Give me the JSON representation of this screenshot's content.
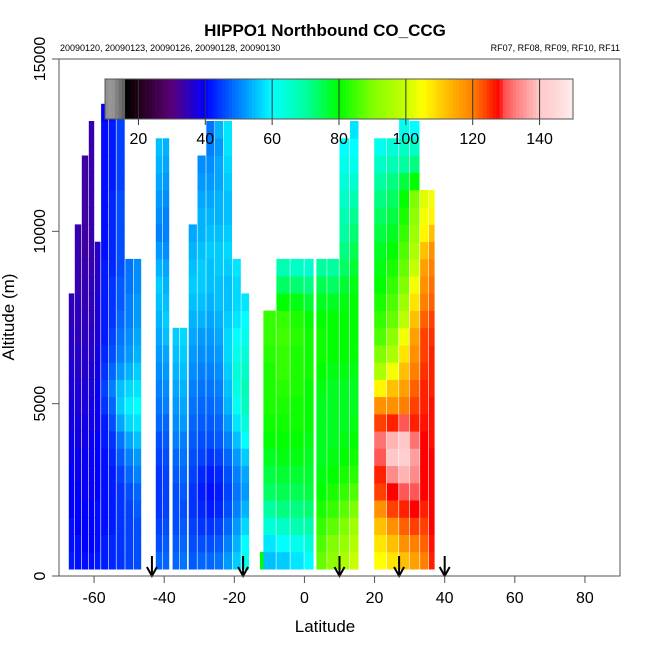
{
  "chart_data": {
    "type": "heatmap",
    "title": "HIPPO1 Northbound CO_CCG",
    "subtitle_left": "20090120, 20090123, 20090126, 20090128, 20090130",
    "subtitle_right": "RF07, RF08, RF09, RF10, RF11",
    "xlabel": "Latitude",
    "ylabel": "Altitude (m)",
    "xlim": [
      -70,
      90
    ],
    "ylim": [
      0,
      15000
    ],
    "xticks": [
      -60,
      -40,
      -20,
      0,
      20,
      40,
      60,
      80
    ],
    "yticks": [
      0,
      5000,
      10000,
      15000
    ],
    "grid": false,
    "colorbar": {
      "range": [
        10,
        150
      ],
      "ticks": [
        20,
        40,
        60,
        80,
        100,
        120,
        140
      ],
      "placement": "top",
      "stops": [
        [
          10,
          "#8c8c8c"
        ],
        [
          12,
          "#9a9a9a"
        ],
        [
          14,
          "#7a7a7a"
        ],
        [
          15.9,
          "#5a5a5a"
        ],
        [
          16,
          "#000000"
        ],
        [
          20,
          "#200014"
        ],
        [
          30,
          "#5a0078"
        ],
        [
          40,
          "#0000ff"
        ],
        [
          50,
          "#0080ff"
        ],
        [
          60,
          "#00ffff"
        ],
        [
          70,
          "#00ffa0"
        ],
        [
          80,
          "#00ff00"
        ],
        [
          90,
          "#80ff00"
        ],
        [
          100,
          "#c8ff00"
        ],
        [
          105,
          "#ffff00"
        ],
        [
          112,
          "#ffc000"
        ],
        [
          120,
          "#ff8000"
        ],
        [
          128,
          "#ff0000"
        ],
        [
          129,
          "#ff4848"
        ],
        [
          133,
          "#ff8080"
        ],
        [
          137,
          "#ffa8a8"
        ],
        [
          140,
          "#ffc8c8"
        ],
        [
          145,
          "#ffd8d8"
        ],
        [
          150,
          "#ffecec"
        ]
      ]
    },
    "flight_markers_lat": [
      -43.5,
      -17.5,
      10,
      27,
      40
    ],
    "bin_altitude_m": 500,
    "columns": [
      {
        "lat": [
          -67.2,
          -65.5
        ],
        "values": [
          42,
          41,
          41,
          40,
          40,
          40,
          39,
          39,
          38,
          38,
          37,
          37,
          36,
          36,
          35,
          35
        ]
      },
      {
        "lat": [
          -65.5,
          -63.5
        ],
        "values": [
          41,
          41,
          40,
          40,
          40,
          39,
          39,
          38,
          38,
          37,
          37,
          36,
          36,
          35,
          35,
          35,
          34,
          34,
          34,
          34
        ]
      },
      {
        "lat": [
          -63.5,
          -61.5
        ],
        "values": [
          41,
          40,
          40,
          40,
          39,
          39,
          39,
          38,
          38,
          37,
          37,
          36,
          36,
          35,
          35,
          34,
          34,
          34,
          33,
          33,
          33,
          33,
          33,
          33
        ]
      },
      {
        "lat": [
          -61.5,
          -59.8
        ],
        "values": [
          41,
          40,
          40,
          40,
          39,
          39,
          39,
          39,
          38,
          38,
          37,
          37,
          36,
          36,
          35,
          35,
          35,
          34,
          34,
          34,
          34,
          34,
          34,
          34,
          34,
          34
        ]
      },
      {
        "lat": [
          -59.8,
          -58.0
        ],
        "values": [
          42,
          41,
          41,
          41,
          40,
          40,
          40,
          40,
          39,
          39,
          39,
          38,
          38,
          37,
          37,
          37,
          36,
          36,
          36
        ]
      },
      {
        "lat": [
          -58.0,
          -55.8
        ],
        "values": [
          42,
          42,
          41,
          41,
          41,
          41,
          41,
          42,
          42,
          44,
          45,
          44,
          43,
          42,
          42,
          42,
          42,
          42,
          41,
          41,
          41,
          41,
          41,
          41,
          41,
          41,
          40
        ]
      },
      {
        "lat": [
          -55.8,
          -53.6
        ],
        "values": [
          43,
          43,
          42,
          42,
          42,
          42,
          43,
          44,
          46,
          48,
          50,
          48,
          46,
          45,
          44,
          44,
          44,
          43,
          43,
          43,
          43,
          43,
          42,
          42,
          42,
          42,
          41
        ]
      },
      {
        "lat": [
          -53.6,
          -51.1
        ],
        "values": [
          44,
          44,
          44,
          44,
          44,
          45,
          47,
          49,
          53,
          56,
          55,
          52,
          50,
          49,
          48,
          47,
          47,
          46,
          46,
          46,
          46,
          46,
          45,
          45,
          45,
          45,
          45
        ]
      },
      {
        "lat": [
          -51.1,
          -48.7
        ],
        "values": [
          45,
          45,
          45,
          45,
          46,
          48,
          50,
          53,
          57,
          59,
          57,
          54,
          52,
          51,
          50,
          50,
          49,
          49
        ]
      },
      {
        "lat": [
          -48.7,
          -46.4
        ],
        "values": [
          46,
          46,
          46,
          47,
          48,
          50,
          52,
          55,
          58,
          60,
          58,
          56,
          54,
          53,
          52,
          52,
          51,
          51
        ]
      },
      {
        "lat": [
          -42.4,
          -40.4
        ],
        "values": [
          48,
          46,
          45,
          44,
          44,
          44,
          45,
          46,
          48,
          49,
          50,
          51,
          52,
          53,
          54,
          55,
          56,
          54,
          52,
          50,
          51,
          52,
          53,
          54,
          55
        ]
      },
      {
        "lat": [
          -40.4,
          -38.4
        ],
        "values": [
          48,
          47,
          46,
          45,
          45,
          45,
          46,
          47,
          48,
          50,
          51,
          52,
          53,
          55,
          56,
          55,
          54,
          53,
          51,
          50,
          50,
          51,
          52,
          53,
          54
        ]
      },
      {
        "lat": [
          -37.6,
          -35.5
        ],
        "values": [
          48,
          47,
          46,
          46,
          46,
          47,
          48,
          50,
          51,
          52,
          53,
          54,
          55,
          56
        ]
      },
      {
        "lat": [
          -35.5,
          -33.3
        ],
        "values": [
          49,
          48,
          47,
          46,
          47,
          48,
          49,
          50,
          52,
          53,
          54,
          55,
          56,
          57
        ]
      },
      {
        "lat": [
          -33.0,
          -30.5
        ],
        "values": [
          47,
          46,
          45,
          44,
          44,
          45,
          46,
          47,
          48,
          49,
          50,
          51,
          52,
          53,
          54,
          55,
          56,
          55,
          54,
          53
        ]
      },
      {
        "lat": [
          -30.5,
          -28.0
        ],
        "values": [
          48,
          46,
          44,
          43,
          42,
          43,
          45,
          46,
          47,
          48,
          49,
          50,
          51,
          52,
          54,
          55,
          56,
          56,
          55,
          54,
          54,
          53,
          52,
          51
        ]
      },
      {
        "lat": [
          -28.0,
          -25.5
        ],
        "values": [
          48,
          46,
          44,
          42,
          41,
          42,
          44,
          46,
          47,
          48,
          49,
          50,
          51,
          52,
          53,
          54,
          55,
          55,
          56,
          55,
          54,
          53,
          52,
          51,
          50,
          49
        ]
      },
      {
        "lat": [
          -25.5,
          -23.0
        ],
        "values": [
          49,
          47,
          45,
          43,
          42,
          43,
          45,
          47,
          48,
          49,
          50,
          51,
          52,
          53,
          54,
          55,
          55,
          56,
          56,
          55,
          54,
          54,
          53,
          53,
          52,
          54
        ]
      },
      {
        "lat": [
          -23.0,
          -20.5
        ],
        "values": [
          52,
          50,
          48,
          46,
          45,
          46,
          48,
          50,
          52,
          54,
          55,
          56,
          57,
          57,
          56,
          55,
          55,
          56,
          57,
          56,
          55,
          55,
          56,
          57,
          58,
          58
        ]
      },
      {
        "lat": [
          -20.5,
          -18.0
        ],
        "values": [
          56,
          54,
          52,
          50,
          49,
          50,
          52,
          55,
          58,
          61,
          63,
          64,
          62,
          60,
          58,
          57,
          57,
          58
        ]
      },
      {
        "lat": [
          -18.0,
          -15.6
        ],
        "values": [
          62,
          60,
          57,
          54,
          52,
          53,
          56,
          60,
          64,
          67,
          68,
          66,
          64,
          62,
          60,
          58
        ]
      },
      {
        "lat": [
          -12.7,
          -10.6
        ],
        "values": [
          80
        ]
      },
      {
        "lat": [
          -11.7,
          -8.0
        ],
        "values": [
          55,
          58,
          64,
          70,
          74,
          76,
          78,
          80,
          81,
          82,
          82,
          82,
          83,
          84,
          84
        ]
      },
      {
        "lat": [
          -8.0,
          -4.0
        ],
        "values": [
          56,
          60,
          66,
          72,
          75,
          77,
          79,
          80,
          81,
          82,
          83,
          84,
          84,
          85,
          84,
          80,
          74,
          68
        ]
      },
      {
        "lat": [
          -4.0,
          0.0
        ],
        "values": [
          58,
          62,
          68,
          72,
          75,
          77,
          79,
          80,
          81,
          81,
          82,
          82,
          82,
          83,
          82,
          79,
          73,
          66
        ]
      },
      {
        "lat": [
          0.0,
          2.8
        ],
        "values": [
          60,
          64,
          69,
          73,
          76,
          77,
          78,
          79,
          80,
          80,
          80,
          81,
          81,
          81,
          80,
          77,
          72,
          65
        ]
      },
      {
        "lat": [
          3.4,
          6.5
        ],
        "values": [
          88,
          86,
          84,
          82,
          80,
          79,
          78,
          78,
          78,
          78,
          79,
          80,
          81,
          81,
          80,
          78,
          75,
          70
        ]
      },
      {
        "lat": [
          6.5,
          10.0
        ],
        "values": [
          92,
          90,
          87,
          84,
          82,
          80,
          79,
          78,
          78,
          78,
          78,
          79,
          80,
          80,
          80,
          78,
          74,
          70
        ]
      },
      {
        "lat": [
          10.0,
          13.0
        ],
        "values": [
          96,
          93,
          90,
          87,
          84,
          82,
          80,
          79,
          78,
          78,
          78,
          79,
          80,
          80,
          80,
          79,
          77,
          74,
          72,
          70,
          68,
          66,
          64,
          62,
          60
        ]
      },
      {
        "lat": [
          13.0,
          15.6
        ],
        "values": [
          100,
          97,
          94,
          90,
          86,
          83,
          81,
          80,
          79,
          78,
          78,
          79,
          80,
          80,
          80,
          80,
          79,
          77,
          75,
          73,
          71,
          68,
          65,
          62,
          60,
          58
        ]
      },
      {
        "lat": [
          19.9,
          23.5
        ],
        "values": [
          105,
          108,
          112,
          118,
          124,
          126,
          130,
          132,
          124,
          118,
          106,
          96,
          90,
          86,
          84,
          82,
          80,
          79,
          78,
          76,
          74,
          72,
          70,
          66,
          62
        ]
      },
      {
        "lat": [
          23.5,
          27.0
        ],
        "values": [
          108,
          112,
          118,
          124,
          128,
          134,
          140,
          138,
          126,
          118,
          112,
          104,
          96,
          92,
          88,
          86,
          84,
          82,
          80,
          78,
          76,
          74,
          72,
          68,
          64
        ]
      },
      {
        "lat": [
          27.0,
          30.0
        ],
        "values": [
          112,
          118,
          122,
          126,
          130,
          138,
          142,
          140,
          130,
          120,
          116,
          112,
          108,
          104,
          98,
          94,
          90,
          88,
          86,
          84,
          82,
          80,
          76,
          70,
          66,
          62,
          60
        ]
      },
      {
        "lat": [
          30.0,
          33.0
        ],
        "values": [
          116,
          120,
          124,
          128,
          130,
          134,
          136,
          132,
          126,
          124,
          122,
          120,
          118,
          116,
          112,
          108,
          104,
          100,
          96,
          94,
          92,
          90,
          80,
          72,
          66,
          60
        ]
      },
      {
        "lat": [
          33.0,
          35.5
        ],
        "values": [
          120,
          122,
          124,
          126,
          128,
          128,
          128,
          128,
          127,
          126,
          126,
          125,
          124,
          124,
          122,
          120,
          118,
          116,
          112,
          106,
          104,
          102
        ]
      },
      {
        "lat": [
          35.5,
          37.3
        ],
        "values": [
          126,
          127,
          128,
          128,
          128,
          128,
          128,
          127,
          127,
          127,
          126,
          126,
          126,
          125,
          124,
          122,
          121,
          120,
          118,
          112,
          106,
          104
        ]
      }
    ]
  }
}
